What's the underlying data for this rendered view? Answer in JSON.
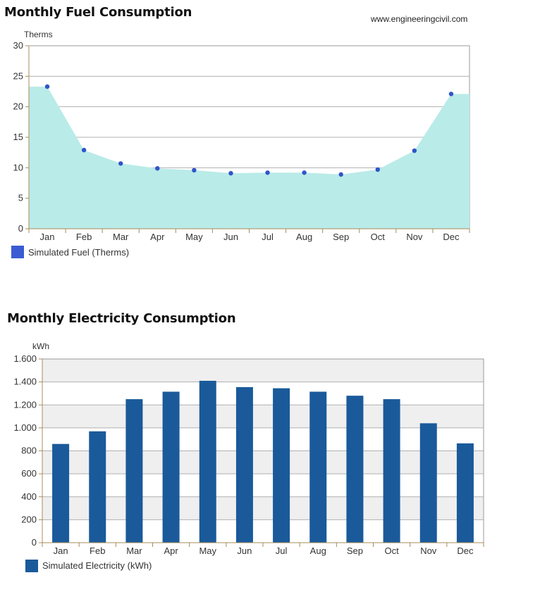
{
  "watermark": "www.engineeringcivil.com",
  "colors": {
    "fuel_fill": "#b9ebe8",
    "fuel_marker": "#2f55c8",
    "fuel_legend": "#3b5bd3",
    "elec_bar": "#1a5a9a",
    "axis": "#a88c5a",
    "grid": "#b0b0b0",
    "band": "#efefef"
  },
  "chart_data": [
    {
      "type": "area",
      "title": "Monthly Fuel Consumption",
      "ylabel": "Therms",
      "xlabel": "",
      "categories": [
        "Jan",
        "Feb",
        "Mar",
        "Apr",
        "May",
        "Jun",
        "Jul",
        "Aug",
        "Sep",
        "Oct",
        "Nov",
        "Dec"
      ],
      "series": [
        {
          "name": "Simulated Fuel (Therms)",
          "values": [
            23.3,
            12.9,
            10.7,
            9.9,
            9.6,
            9.1,
            9.2,
            9.2,
            8.9,
            9.7,
            12.8,
            22.1
          ]
        }
      ],
      "ylim": [
        0,
        30
      ],
      "yticks": [
        0,
        5,
        10,
        15,
        20,
        25,
        30
      ],
      "grid": true,
      "legend": "bottom-left"
    },
    {
      "type": "bar",
      "title": "Monthly Electricity Consumption",
      "ylabel": "kWh",
      "xlabel": "",
      "categories": [
        "Jan",
        "Feb",
        "Mar",
        "Apr",
        "May",
        "Jun",
        "Jul",
        "Aug",
        "Sep",
        "Oct",
        "Nov",
        "Dec"
      ],
      "series": [
        {
          "name": "Simulated Electricity (kWh)",
          "values": [
            860,
            970,
            1250,
            1315,
            1410,
            1355,
            1345,
            1315,
            1280,
            1250,
            1040,
            865
          ]
        }
      ],
      "ylim": [
        0,
        1600
      ],
      "yticks": [
        0,
        200,
        400,
        600,
        800,
        1000,
        1200,
        1400,
        1600
      ],
      "ytick_labels": [
        "0",
        "200",
        "400",
        "600",
        "800",
        "1.000",
        "1.200",
        "1.400",
        "1.600"
      ],
      "grid": true,
      "legend": "bottom-left"
    }
  ]
}
